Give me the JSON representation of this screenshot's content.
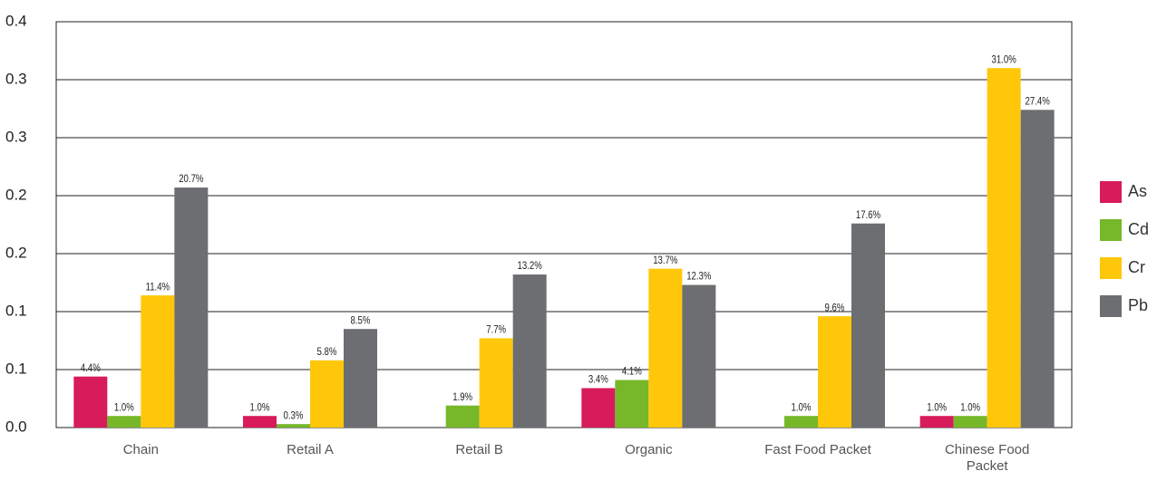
{
  "chart_data": {
    "type": "bar",
    "categories": [
      "Chain",
      "Retail A",
      "Retail B",
      "Organic",
      "Fast Food Packet",
      "Chinese Food Packet"
    ],
    "series": [
      {
        "name": "As",
        "color": "#d81b5a",
        "values": [
          0.044,
          0.01,
          null,
          0.034,
          null,
          0.01
        ],
        "value_labels": [
          "4.4%",
          "1.0%",
          null,
          "3.4%",
          null,
          "1.0%"
        ]
      },
      {
        "name": "Cd",
        "color": "#76b82a",
        "values": [
          0.01,
          0.003,
          0.019,
          0.041,
          0.01,
          0.01
        ],
        "value_labels": [
          "1.0%",
          "0.3%",
          "1.9%",
          "4.1%",
          "1.0%",
          "1.0%"
        ]
      },
      {
        "name": "Cr",
        "color": "#ffc709",
        "values": [
          0.114,
          0.058,
          0.077,
          0.137,
          0.096,
          0.31
        ],
        "value_labels": [
          "11.4%",
          "5.8%",
          "7.7%",
          "13.7%",
          "9.6%",
          "31.0%"
        ]
      },
      {
        "name": "Pb",
        "color": "#6d6e71",
        "values": [
          0.207,
          0.085,
          0.132,
          0.123,
          0.176,
          0.274
        ],
        "value_labels": [
          "20.7%",
          "8.5%",
          "13.2%",
          "12.3%",
          "17.6%",
          "27.4%"
        ]
      }
    ],
    "ylim": [
      0,
      0.35
    ],
    "yticks": [
      {
        "value": 0,
        "label": "0.0"
      },
      {
        "value": 0.05,
        "label": "0.1"
      },
      0.1,
      {
        "value": 0.15,
        "label": "0.2"
      },
      0.2,
      {
        "value": 0.25,
        "label": "0.3"
      },
      0.3,
      {
        "value": 0.35,
        "label": "0.4"
      }
    ],
    "grid": true,
    "legend": "right"
  }
}
